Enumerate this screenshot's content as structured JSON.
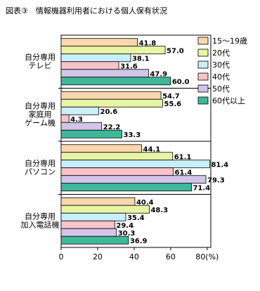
{
  "chart_data": {
    "type": "bar",
    "orientation": "horizontal",
    "title": "図表③　情報機器利用者における個人保有状況",
    "categories": [
      [
        "自分専用",
        "テレビ"
      ],
      [
        "自分専用",
        "家庭用",
        "ゲーム機"
      ],
      [
        "自分専用",
        "パソコン"
      ],
      [
        "自分専用",
        "加入電話機"
      ]
    ],
    "series": [
      {
        "name": "15〜19歳",
        "color": "#fbd7ae",
        "values": [
          41.8,
          54.7,
          44.1,
          40.4
        ],
        "value_labels": [
          "41.8",
          "54.7",
          "44.1",
          "40.4"
        ]
      },
      {
        "name": "20代",
        "color": "#e8f5a4",
        "values": [
          57.0,
          55.6,
          61.1,
          48.3
        ],
        "value_labels": [
          "57.0",
          "55.6",
          "61.1",
          "48.3"
        ]
      },
      {
        "name": "30代",
        "color": "#c9eff8",
        "values": [
          38.1,
          20.6,
          81.4,
          35.4
        ],
        "value_labels": [
          "38.1",
          "20.6",
          "81.4",
          "35.4"
        ]
      },
      {
        "name": "40代",
        "color": "#f8c3cb",
        "values": [
          31.6,
          4.3,
          61.4,
          29.4
        ],
        "value_labels": [
          "31.6",
          "4.3",
          "61.4",
          "29.4"
        ]
      },
      {
        "name": "50代",
        "color": "#d3c4ea",
        "values": [
          47.9,
          22.2,
          79.3,
          30.3
        ],
        "value_labels": [
          "47.9",
          "22.2",
          "79.3",
          "30.3"
        ]
      },
      {
        "name": "60代以上",
        "color": "#3fb899",
        "values": [
          60.0,
          33.3,
          71.4,
          36.9
        ],
        "value_labels": [
          "60.0",
          "33.3",
          "71.4",
          "36.9"
        ]
      }
    ],
    "xlim": [
      0,
      82
    ],
    "xticks": [
      0,
      20,
      40,
      60,
      {
        "value": 80,
        "label": "80(%)"
      }
    ]
  }
}
